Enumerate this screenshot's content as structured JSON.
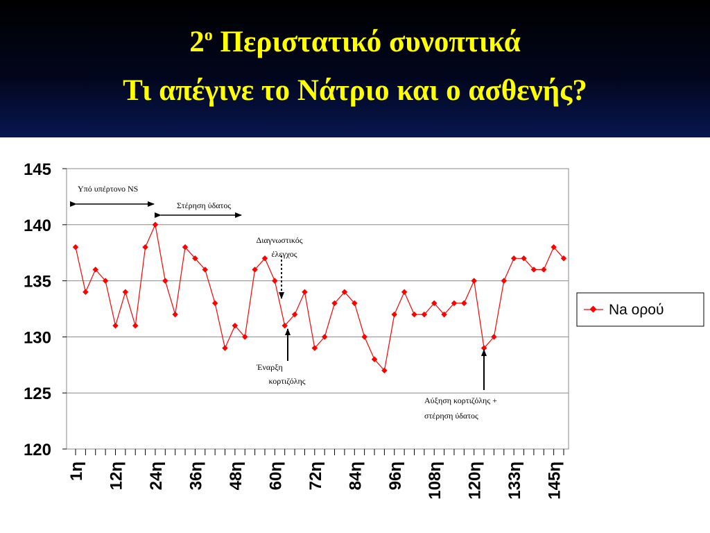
{
  "header": {
    "title_line1_prefix": "2",
    "title_line1_superscript": "ο",
    "title_line1_rest": " Περιστατικό συνοπτικά",
    "title_line2": "Τι απέγινε το Νάτριο και ο ασθενής?",
    "title_color": "#ffff00"
  },
  "chart_data": {
    "type": "line",
    "title": "",
    "xlabel": "",
    "ylabel": "",
    "ylim": [
      120,
      145
    ],
    "y_ticks": [
      120,
      125,
      130,
      135,
      140,
      145
    ],
    "x_tick_labels": [
      {
        "label": "1η",
        "index": 0
      },
      {
        "label": "12η",
        "index": 4
      },
      {
        "label": "24η",
        "index": 8
      },
      {
        "label": "36η",
        "index": 12
      },
      {
        "label": "48η",
        "index": 16
      },
      {
        "label": "60η",
        "index": 20
      },
      {
        "label": "72η",
        "index": 24
      },
      {
        "label": "84η",
        "index": 28
      },
      {
        "label": "96η",
        "index": 32
      },
      {
        "label": "108η",
        "index": 36
      },
      {
        "label": "120η",
        "index": 40
      },
      {
        "label": "133η",
        "index": 44
      },
      {
        "label": "145η",
        "index": 48
      }
    ],
    "grid": "horizontal",
    "legend_position": "right",
    "series": [
      {
        "name": "Na ορού",
        "color": "#ff0000",
        "values": [
          138,
          134,
          136,
          135,
          131,
          134,
          131,
          138,
          140,
          135,
          132,
          138,
          137,
          136,
          133,
          129,
          131,
          130,
          136,
          137,
          135,
          131,
          132,
          134,
          129,
          130,
          133,
          134,
          133,
          130,
          128,
          127,
          132,
          134,
          132,
          132,
          133,
          132,
          133,
          133,
          135,
          129,
          130,
          135,
          137,
          137,
          136,
          136,
          138,
          137
        ]
      }
    ],
    "annotations": {
      "ns_label": "Υπό υπέρτονο NS",
      "water_restriction_label": "Στέρηση ύδατος",
      "diagnostic_line1": "Διαγνωστικός",
      "diagnostic_line2": "έλεγχος",
      "cortisol_start_line1": "Έναρξη",
      "cortisol_start_line2": "κορτιζόλης",
      "cortisol_increase_line1": "Αύξηση κορτιζόλης +",
      "cortisol_increase_line2": "στέρηση ύδατος"
    }
  }
}
